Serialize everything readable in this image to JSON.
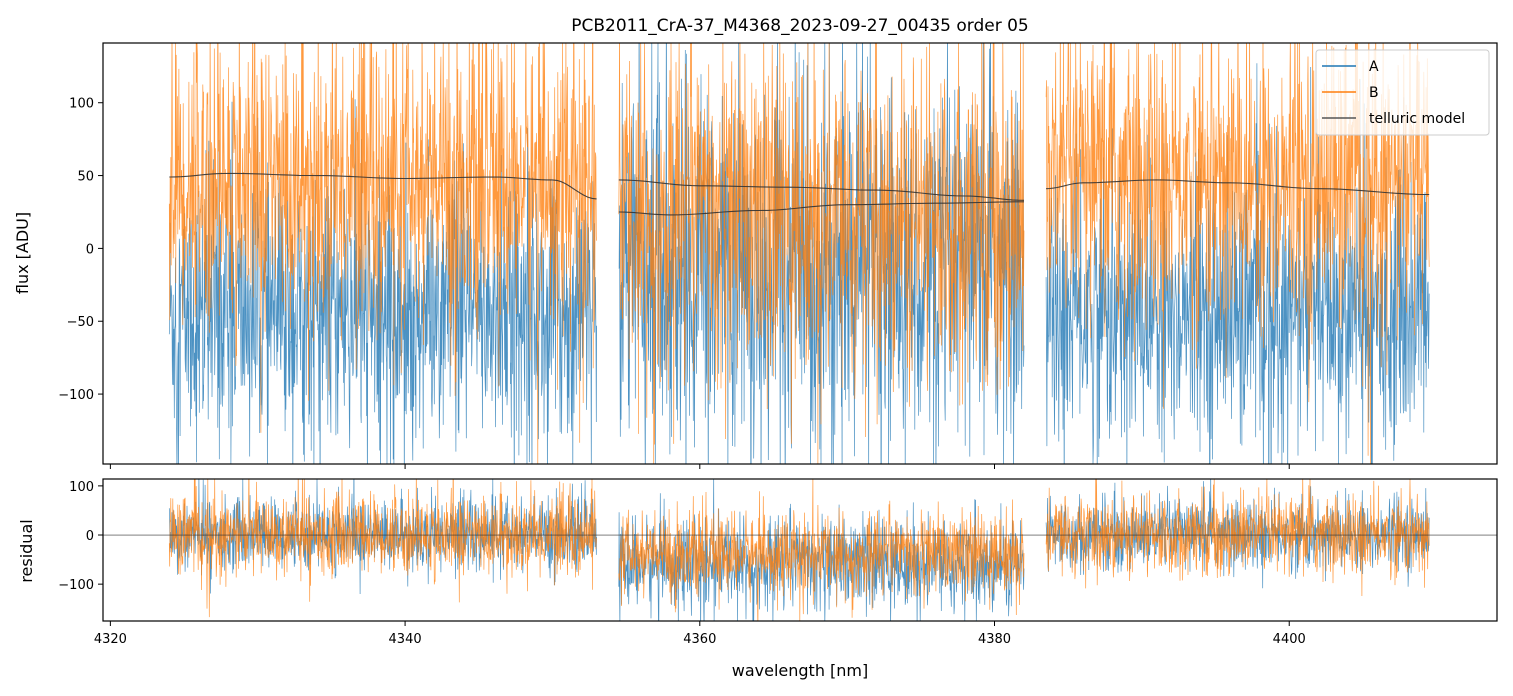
{
  "chart_data": [
    {
      "type": "line",
      "title": "PCB2011_CrA-37_M4368_2023-09-27_00435  order 05",
      "xlabel": "",
      "ylabel": "flux [ADU]",
      "xlim": [
        4319.5,
        4414.1
      ],
      "ylim": [
        -148,
        141
      ],
      "yticks": [
        -100,
        -50,
        0,
        50,
        100
      ],
      "ytick_labels": [
        "−100",
        "−50",
        "0",
        "50",
        "100"
      ],
      "legend": {
        "placement": "top-right",
        "entries": [
          "A",
          "B",
          "telluric model"
        ]
      },
      "colors": {
        "A": "#1f77b4",
        "B": "#ff7f0e",
        "telluric": "#333333"
      },
      "segments": [
        {
          "x": [
            4324,
            4353
          ],
          "A_mean": -45,
          "A_sigma": 45,
          "B_mean": 45,
          "B_sigma": 50
        },
        {
          "x": [
            4354.5,
            4382
          ],
          "A_mean": -15,
          "A_sigma": 60,
          "B_mean": 20,
          "B_sigma": 55
        },
        {
          "x": [
            4383.5,
            4409.5
          ],
          "A_mean": -45,
          "A_sigma": 45,
          "B_mean": 45,
          "B_sigma": 50
        }
      ],
      "telluric_model": [
        {
          "x": [
            4324,
            4328,
            4334,
            4340,
            4346,
            4350,
            4353
          ],
          "y": [
            49,
            51.5,
            50,
            48,
            49,
            47,
            34
          ]
        },
        {
          "x": [
            4354.5,
            4360,
            4366,
            4372,
            4378,
            4382
          ],
          "y": [
            47,
            43,
            42,
            40,
            36,
            33
          ]
        },
        {
          "x": [
            4354.5,
            4358,
            4364,
            4370,
            4376,
            4382
          ],
          "y": [
            25,
            23,
            26,
            30,
            31,
            32
          ]
        },
        {
          "x": [
            4383.5,
            4386,
            4391,
            4396,
            4402,
            4409.5
          ],
          "y": [
            41,
            45,
            47,
            45,
            41,
            37
          ]
        }
      ]
    },
    {
      "type": "line",
      "xlabel": "wavelength [nm]",
      "ylabel": "residual",
      "xlim": [
        4319.5,
        4414.1
      ],
      "ylim": [
        -175,
        114
      ],
      "xticks": [
        4320,
        4340,
        4360,
        4380,
        4400
      ],
      "xtick_labels": [
        "4320",
        "4340",
        "4360",
        "4380",
        "4400"
      ],
      "yticks": [
        -100,
        0,
        100
      ],
      "ytick_labels": [
        "−100",
        "0",
        "100"
      ],
      "segments": [
        {
          "x": [
            4324,
            4353
          ],
          "A_mean": 0,
          "A_sigma": 35,
          "B_mean": 0,
          "B_sigma": 40
        },
        {
          "x": [
            4354.5,
            4382
          ],
          "A_mean": -60,
          "A_sigma": 45,
          "B_mean": -40,
          "B_sigma": 40
        },
        {
          "x": [
            4383.5,
            4409.5
          ],
          "A_mean": 0,
          "A_sigma": 35,
          "B_mean": 0,
          "B_sigma": 40
        }
      ],
      "zero_line": 0
    }
  ]
}
